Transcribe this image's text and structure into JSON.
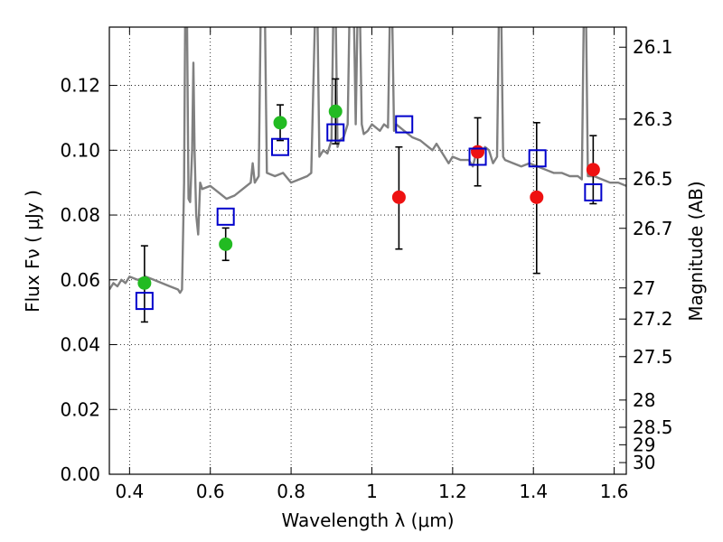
{
  "chart_data": {
    "type": "scatter",
    "xlabel": "Wavelength  λ (μm)",
    "ylabel": "Flux  Fν  ( μJy )",
    "ylabel_right": "Magnitude (AB)",
    "xlim": [
      0.35,
      1.63
    ],
    "ylim": [
      0.0,
      0.138
    ],
    "grid": true,
    "x_ticks": [
      0.4,
      0.6,
      0.8,
      1.0,
      1.2,
      1.4,
      1.6
    ],
    "x_tick_labels": [
      "0.4",
      "0.6",
      "0.8",
      "1",
      "1.2",
      "1.4",
      "1.6"
    ],
    "y_ticks": [
      0.0,
      0.02,
      0.04,
      0.06,
      0.08,
      0.1,
      0.12
    ],
    "y_tick_labels": [
      "0.00",
      "0.02",
      "0.04",
      "0.06",
      "0.08",
      "0.10",
      "0.12"
    ],
    "magnitude_ticks": [
      {
        "label": "26.1",
        "flux": 0.1318
      },
      {
        "label": "26.3",
        "flux": 0.1096
      },
      {
        "label": "26.5",
        "flux": 0.0912
      },
      {
        "label": "26.7",
        "flux": 0.0759
      },
      {
        "label": "27",
        "flux": 0.0575
      },
      {
        "label": "27.2",
        "flux": 0.0479
      },
      {
        "label": "27.5",
        "flux": 0.0363
      },
      {
        "label": "28",
        "flux": 0.0229
      },
      {
        "label": "28.5",
        "flux": 0.0145
      },
      {
        "label": "29",
        "flux": 0.0091
      },
      {
        "label": "30",
        "flux": 0.0036
      }
    ],
    "series": [
      {
        "kind": "line",
        "color": "#808080",
        "points": [
          [
            0.35,
            0.057
          ],
          [
            0.36,
            0.059
          ],
          [
            0.37,
            0.058
          ],
          [
            0.38,
            0.06
          ],
          [
            0.39,
            0.059
          ],
          [
            0.4,
            0.061
          ],
          [
            0.42,
            0.06
          ],
          [
            0.44,
            0.061
          ],
          [
            0.46,
            0.06
          ],
          [
            0.48,
            0.059
          ],
          [
            0.5,
            0.058
          ],
          [
            0.52,
            0.057
          ],
          [
            0.525,
            0.056
          ],
          [
            0.53,
            0.057
          ],
          [
            0.535,
            0.09
          ],
          [
            0.538,
            0.145
          ],
          [
            0.542,
            0.145
          ],
          [
            0.546,
            0.085
          ],
          [
            0.55,
            0.084
          ],
          [
            0.555,
            0.1
          ],
          [
            0.558,
            0.127
          ],
          [
            0.561,
            0.1
          ],
          [
            0.565,
            0.08
          ],
          [
            0.57,
            0.074
          ],
          [
            0.575,
            0.09
          ],
          [
            0.58,
            0.088
          ],
          [
            0.6,
            0.089
          ],
          [
            0.62,
            0.087
          ],
          [
            0.64,
            0.085
          ],
          [
            0.66,
            0.086
          ],
          [
            0.68,
            0.088
          ],
          [
            0.7,
            0.09
          ],
          [
            0.705,
            0.096
          ],
          [
            0.71,
            0.09
          ],
          [
            0.72,
            0.092
          ],
          [
            0.725,
            0.145
          ],
          [
            0.735,
            0.145
          ],
          [
            0.74,
            0.093
          ],
          [
            0.76,
            0.092
          ],
          [
            0.78,
            0.093
          ],
          [
            0.8,
            0.09
          ],
          [
            0.82,
            0.091
          ],
          [
            0.84,
            0.092
          ],
          [
            0.85,
            0.093
          ],
          [
            0.86,
            0.145
          ],
          [
            0.865,
            0.145
          ],
          [
            0.87,
            0.098
          ],
          [
            0.88,
            0.1
          ],
          [
            0.89,
            0.099
          ],
          [
            0.9,
            0.103
          ],
          [
            0.905,
            0.145
          ],
          [
            0.91,
            0.145
          ],
          [
            0.915,
            0.101
          ],
          [
            0.92,
            0.103
          ],
          [
            0.93,
            0.104
          ],
          [
            0.94,
            0.108
          ],
          [
            0.945,
            0.145
          ],
          [
            0.955,
            0.145
          ],
          [
            0.96,
            0.108
          ],
          [
            0.965,
            0.145
          ],
          [
            0.97,
            0.145
          ],
          [
            0.975,
            0.108
          ],
          [
            0.98,
            0.105
          ],
          [
            0.99,
            0.106
          ],
          [
            1.0,
            0.108
          ],
          [
            1.01,
            0.107
          ],
          [
            1.02,
            0.106
          ],
          [
            1.03,
            0.108
          ],
          [
            1.04,
            0.107
          ],
          [
            1.045,
            0.145
          ],
          [
            1.05,
            0.145
          ],
          [
            1.055,
            0.106
          ],
          [
            1.06,
            0.108
          ],
          [
            1.08,
            0.106
          ],
          [
            1.1,
            0.104
          ],
          [
            1.12,
            0.103
          ],
          [
            1.14,
            0.101
          ],
          [
            1.15,
            0.1
          ],
          [
            1.16,
            0.102
          ],
          [
            1.17,
            0.1
          ],
          [
            1.18,
            0.098
          ],
          [
            1.19,
            0.096
          ],
          [
            1.2,
            0.098
          ],
          [
            1.22,
            0.097
          ],
          [
            1.24,
            0.097
          ],
          [
            1.25,
            0.095
          ],
          [
            1.26,
            0.1
          ],
          [
            1.27,
            0.098
          ],
          [
            1.28,
            0.101
          ],
          [
            1.29,
            0.1
          ],
          [
            1.3,
            0.096
          ],
          [
            1.31,
            0.098
          ],
          [
            1.315,
            0.145
          ],
          [
            1.32,
            0.145
          ],
          [
            1.325,
            0.098
          ],
          [
            1.33,
            0.097
          ],
          [
            1.35,
            0.096
          ],
          [
            1.37,
            0.095
          ],
          [
            1.39,
            0.096
          ],
          [
            1.41,
            0.095
          ],
          [
            1.43,
            0.094
          ],
          [
            1.45,
            0.093
          ],
          [
            1.47,
            0.093
          ],
          [
            1.49,
            0.092
          ],
          [
            1.51,
            0.092
          ],
          [
            1.52,
            0.091
          ],
          [
            1.525,
            0.145
          ],
          [
            1.53,
            0.145
          ],
          [
            1.535,
            0.092
          ],
          [
            1.55,
            0.092
          ],
          [
            1.57,
            0.091
          ],
          [
            1.59,
            0.09
          ],
          [
            1.61,
            0.09
          ],
          [
            1.63,
            0.089
          ]
        ]
      },
      {
        "kind": "errorbar",
        "color": "#000000",
        "points": [
          {
            "x": 0.437,
            "y": 0.059,
            "low": 0.047,
            "high": 0.0705
          },
          {
            "x": 0.638,
            "y": 0.071,
            "low": 0.066,
            "high": 0.076
          },
          {
            "x": 0.773,
            "y": 0.1085,
            "low": 0.103,
            "high": 0.114
          },
          {
            "x": 0.91,
            "y": 0.112,
            "low": 0.102,
            "high": 0.122
          },
          {
            "x": 1.067,
            "y": 0.0855,
            "low": 0.0695,
            "high": 0.101
          },
          {
            "x": 1.262,
            "y": 0.0995,
            "low": 0.089,
            "high": 0.11
          },
          {
            "x": 1.408,
            "y": 0.0855,
            "low": 0.062,
            "high": 0.1085
          },
          {
            "x": 1.548,
            "y": 0.094,
            "low": 0.0835,
            "high": 0.1045
          }
        ]
      },
      {
        "kind": "points",
        "marker": "filled-circle",
        "color": "#22bb22",
        "points": [
          [
            0.437,
            0.059
          ],
          [
            0.638,
            0.071
          ],
          [
            0.773,
            0.1085
          ],
          [
            0.91,
            0.112
          ]
        ]
      },
      {
        "kind": "points",
        "marker": "filled-circle",
        "color": "#ee1111",
        "points": [
          [
            1.067,
            0.0855
          ],
          [
            1.262,
            0.0995
          ],
          [
            1.408,
            0.0855
          ],
          [
            1.548,
            0.094
          ]
        ]
      },
      {
        "kind": "points",
        "marker": "open-square",
        "color": "#0000cc",
        "points": [
          [
            0.437,
            0.0535
          ],
          [
            0.638,
            0.0795
          ],
          [
            0.773,
            0.101
          ],
          [
            0.91,
            0.1055
          ],
          [
            1.08,
            0.108
          ],
          [
            1.262,
            0.098
          ],
          [
            1.41,
            0.0975
          ],
          [
            1.548,
            0.087
          ]
        ]
      }
    ]
  }
}
